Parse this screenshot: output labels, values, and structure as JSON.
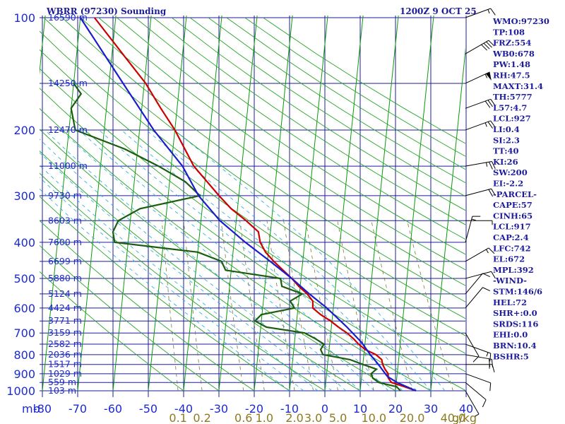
{
  "header": {
    "station": "WBRR (97230) Sounding",
    "time": "1200Z  9 OCT 25"
  },
  "chart_data": {
    "type": "line",
    "title": "WBRR (97230) Sounding",
    "subtitle": "1200Z  9 OCT 25",
    "x_unit": "°C",
    "y_unit": "mb",
    "xlim": [
      -80,
      40
    ],
    "ylim": [
      1000,
      100
    ],
    "log_y": true,
    "pressure_labels": [
      100,
      200,
      300,
      400,
      500,
      600,
      700,
      800,
      900,
      1000
    ],
    "temperature_ticks": [
      -80,
      -70,
      -60,
      -50,
      -40,
      -30,
      -20,
      -10,
      0,
      10,
      20,
      30,
      40
    ],
    "temperature_tick_labels": [
      "-80",
      "-70",
      "-60",
      "-50",
      "-40",
      "-30",
      "-20",
      "-10",
      "0",
      "10",
      "20",
      "30",
      "40"
    ],
    "mixing_ratio_labels": [
      "0.1",
      "0.2",
      "0.6",
      "1.0",
      "2.0",
      "3.0",
      "5.0",
      "10.0",
      "20.0",
      "40.0"
    ],
    "mixing_ratio_values": [
      0.1,
      0.2,
      0.6,
      1.0,
      2.0,
      3.0,
      5.0,
      10.0,
      20.0,
      40.0
    ],
    "mixing_ratio_unit": "g/kg",
    "heights": [
      {
        "p": 100,
        "label": "16590 m"
      },
      {
        "p": 150,
        "label": "14250 m"
      },
      {
        "p": 200,
        "label": "12470 m"
      },
      {
        "p": 250,
        "label": "11000 m"
      },
      {
        "p": 300,
        "label": "9730 m"
      },
      {
        "p": 350,
        "label": "8603 m"
      },
      {
        "p": 400,
        "label": "7600 m"
      },
      {
        "p": 450,
        "label": "6699 m"
      },
      {
        "p": 500,
        "label": "5880 m"
      },
      {
        "p": 550,
        "label": "5124 m"
      },
      {
        "p": 600,
        "label": "4424 m"
      },
      {
        "p": 650,
        "label": "3771 m"
      },
      {
        "p": 700,
        "label": "3159 m"
      },
      {
        "p": 750,
        "label": "2582 m"
      },
      {
        "p": 800,
        "label": "2036 m"
      },
      {
        "p": 850,
        "label": "1517 m"
      },
      {
        "p": 900,
        "label": "1029 m"
      },
      {
        "p": 950,
        "label": "559 m"
      },
      {
        "p": 1000,
        "label": "103 m"
      }
    ],
    "series": [
      {
        "name": "Temperature",
        "color": "#cc0000",
        "points": [
          [
            1000,
            25.8
          ],
          [
            975,
            22.4
          ],
          [
            950,
            18.6
          ],
          [
            925,
            17.6
          ],
          [
            900,
            17.4
          ],
          [
            875,
            16.4
          ],
          [
            850,
            15.6
          ],
          [
            825,
            15.2
          ],
          [
            800,
            13.4
          ],
          [
            775,
            10.2
          ],
          [
            750,
            8.2
          ],
          [
            725,
            6.6
          ],
          [
            700,
            4.6
          ],
          [
            675,
            2.0
          ],
          [
            650,
            -0.4
          ],
          [
            625,
            -3.4
          ],
          [
            600,
            -5.8
          ],
          [
            575,
            -6.0
          ],
          [
            550,
            -7.8
          ],
          [
            525,
            -10.4
          ],
          [
            500,
            -12.6
          ],
          [
            450,
            -18.2
          ],
          [
            425,
            -20.8
          ],
          [
            400,
            -22.6
          ],
          [
            375,
            -23.4
          ],
          [
            350,
            -27.2
          ],
          [
            325,
            -31.8
          ],
          [
            300,
            -35.6
          ],
          [
            250,
            -43.6
          ],
          [
            200,
            -50.0
          ],
          [
            175,
            -54.6
          ],
          [
            150,
            -59.6
          ],
          [
            125,
            -67.0
          ],
          [
            100,
            -76.0
          ]
        ]
      },
      {
        "name": "Dewpoint",
        "color": "#1c5e0f",
        "points": [
          [
            1000,
            21.4
          ],
          [
            975,
            20.2
          ],
          [
            950,
            15.0
          ],
          [
            925,
            13.2
          ],
          [
            900,
            12.6
          ],
          [
            875,
            14.0
          ],
          [
            850,
            10.0
          ],
          [
            825,
            6.2
          ],
          [
            800,
            -1.6
          ],
          [
            775,
            -2.4
          ],
          [
            750,
            -1.6
          ],
          [
            725,
            -4.2
          ],
          [
            700,
            -7.4
          ],
          [
            675,
            -18.4
          ],
          [
            650,
            -21.8
          ],
          [
            625,
            -20.2
          ],
          [
            600,
            -11.0
          ],
          [
            575,
            -12.4
          ],
          [
            550,
            -9.2
          ],
          [
            525,
            -15.2
          ],
          [
            500,
            -15.8
          ],
          [
            475,
            -31.6
          ],
          [
            450,
            -33.0
          ],
          [
            425,
            -40.0
          ],
          [
            400,
            -63.8
          ],
          [
            375,
            -64.6
          ],
          [
            350,
            -63.4
          ],
          [
            325,
            -57.6
          ],
          [
            300,
            -41.0
          ],
          [
            275,
            -45.6
          ],
          [
            250,
            -53.6
          ],
          [
            225,
            -63.6
          ],
          [
            200,
            -78.2
          ],
          [
            175,
            -80.0
          ],
          [
            160,
            -77.6
          ],
          [
            150,
            -80.0
          ]
        ]
      },
      {
        "name": "Parcel",
        "color": "#1c1ccf",
        "points": [
          [
            1000,
            25.8
          ],
          [
            950,
            20.2
          ],
          [
            917,
            17.4
          ],
          [
            900,
            16.6
          ],
          [
            850,
            14.4
          ],
          [
            800,
            11.8
          ],
          [
            742,
            9.0
          ],
          [
            700,
            6.2
          ],
          [
            672,
            4.2
          ],
          [
            600,
            -1.8
          ],
          [
            550,
            -7.2
          ],
          [
            500,
            -12.6
          ],
          [
            450,
            -19.2
          ],
          [
            400,
            -26.8
          ],
          [
            350,
            -34.6
          ],
          [
            300,
            -41.4
          ],
          [
            250,
            -46.8
          ],
          [
            200,
            -56.0
          ],
          [
            150,
            -66.0
          ],
          [
            100,
            -80.0
          ]
        ]
      }
    ],
    "wind_barbs": [
      {
        "p": 100,
        "dir": 70,
        "kt": 15
      },
      {
        "p": 125,
        "dir": 60,
        "kt": 40
      },
      {
        "p": 150,
        "dir": 65,
        "kt": 55
      },
      {
        "p": 175,
        "dir": 70,
        "kt": 30
      },
      {
        "p": 200,
        "dir": 70,
        "kt": 25
      },
      {
        "p": 250,
        "dir": 80,
        "kt": 25
      },
      {
        "p": 300,
        "dir": 75,
        "kt": 20
      },
      {
        "p": 350,
        "dir": 90,
        "kt": 5
      },
      {
        "p": 400,
        "dir": 15,
        "kt": 15
      },
      {
        "p": 450,
        "dir": 60,
        "kt": 15
      },
      {
        "p": 500,
        "dir": 75,
        "kt": 10
      },
      {
        "p": 550,
        "dir": 40,
        "kt": 10
      },
      {
        "p": 600,
        "dir": 40,
        "kt": 10
      },
      {
        "p": 700,
        "dir": 150,
        "kt": 10
      },
      {
        "p": 750,
        "dir": 110,
        "kt": 15
      },
      {
        "p": 800,
        "dir": 100,
        "kt": 20
      },
      {
        "p": 850,
        "dir": 90,
        "kt": 15
      },
      {
        "p": 900,
        "dir": 110,
        "kt": 10
      },
      {
        "p": 950,
        "dir": 130,
        "kt": 10
      },
      {
        "p": 1000,
        "dir": 150,
        "kt": 5
      }
    ],
    "indices": [
      "WMO:97230",
      "TP:108",
      "FRZ:554",
      "WB0:678",
      "PW:1.48",
      "RH:47.5",
      "MAXT:31.4",
      "TH:5777",
      "L57:4.7",
      "LCL:927",
      "LI:0.4",
      "SI:2.3",
      "TT:40",
      "KI:26",
      "SW:200",
      "EI:-2.2",
      "-PARCEL-",
      "CAPE:57",
      "CINH:65",
      "LCL:917",
      "CAP:2.4",
      "LFC:742",
      "EL:672",
      "MPL:392",
      "-WIND-",
      "STM:146/6",
      "HEL:72",
      "SHR+:0.0",
      "SRDS:116",
      "EHI:0.0",
      "BRN:10.4",
      "BSHR:5"
    ]
  },
  "colors": {
    "background": "#ffffff",
    "grid": "#1c1c9a",
    "isotherm_skew": "#0a9a0a",
    "dry_adiabat": "#25a525",
    "moist_adiabat": "#1fa8d8",
    "mixing_ratio": "#7a7a33",
    "axis_labels": "#1c2bd0",
    "mixing_labels": "#8d7a1f"
  },
  "axis": {
    "unit_label": "mb",
    "mixing_unit_label": "g/kg"
  }
}
